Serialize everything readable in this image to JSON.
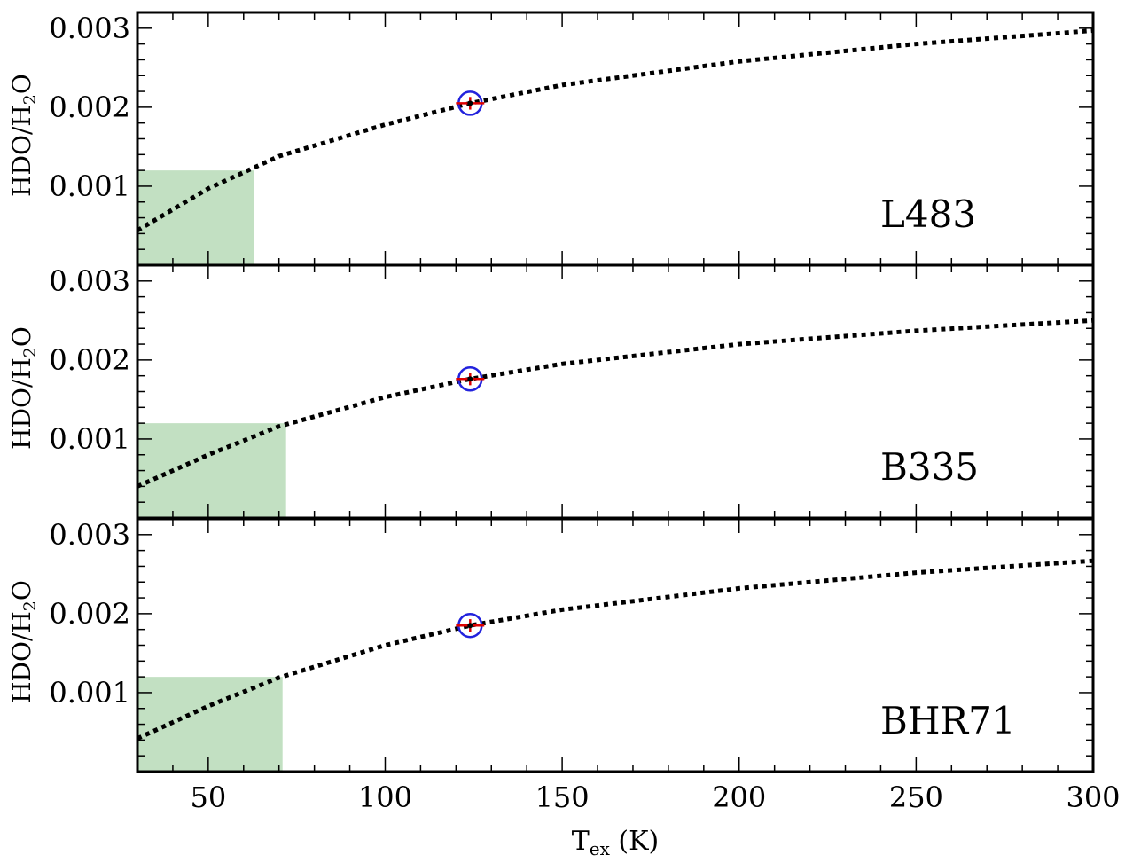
{
  "chart_data": {
    "type": "line",
    "shared_x": true,
    "xlabel_main": "T",
    "xlabel_sub": "ex",
    "xlabel_unit": " (K)",
    "ylabel_parts": [
      "HDO/H",
      "2",
      "O"
    ],
    "xlim": [
      30,
      300
    ],
    "ylim": [
      0,
      0.0032
    ],
    "xticks": [
      50,
      100,
      150,
      200,
      250,
      300
    ],
    "xtick_labels": [
      "50",
      "100",
      "150",
      "200",
      "250",
      "300"
    ],
    "yticks": [
      0.001,
      0.002,
      0.003
    ],
    "ytick_labels": [
      "0.001",
      "0.002",
      "0.003"
    ],
    "grid": false,
    "colors": {
      "curve": "#000000",
      "shade": "#c2e0c2",
      "marker_circle": "#2222dd",
      "errorbar": "#dd0000"
    },
    "panels": [
      {
        "label": "L483",
        "shade_xmax": 63,
        "shade_ymax": 0.0012,
        "point": {
          "x": 124,
          "y": 0.00205,
          "xerr": 4,
          "yerr": 8e-05
        },
        "curve": [
          {
            "x": 30,
            "y": 0.00044
          },
          {
            "x": 50,
            "y": 0.00097
          },
          {
            "x": 70,
            "y": 0.00138
          },
          {
            "x": 100,
            "y": 0.00178
          },
          {
            "x": 124,
            "y": 0.00205
          },
          {
            "x": 150,
            "y": 0.00228
          },
          {
            "x": 200,
            "y": 0.00258
          },
          {
            "x": 250,
            "y": 0.0028
          },
          {
            "x": 300,
            "y": 0.00297
          }
        ]
      },
      {
        "label": "B335",
        "shade_xmax": 72,
        "shade_ymax": 0.0012,
        "point": {
          "x": 124,
          "y": 0.00176,
          "xerr": 4,
          "yerr": 8e-05
        },
        "curve": [
          {
            "x": 30,
            "y": 0.0004
          },
          {
            "x": 50,
            "y": 0.0008
          },
          {
            "x": 70,
            "y": 0.00116
          },
          {
            "x": 100,
            "y": 0.00153
          },
          {
            "x": 124,
            "y": 0.00176
          },
          {
            "x": 150,
            "y": 0.00195
          },
          {
            "x": 200,
            "y": 0.0022
          },
          {
            "x": 250,
            "y": 0.00237
          },
          {
            "x": 300,
            "y": 0.0025
          }
        ]
      },
      {
        "label": "BHR71",
        "shade_xmax": 71,
        "shade_ymax": 0.0012,
        "point": {
          "x": 124,
          "y": 0.00185,
          "xerr": 4,
          "yerr": 8e-05
        },
        "curve": [
          {
            "x": 30,
            "y": 0.00042
          },
          {
            "x": 50,
            "y": 0.00083
          },
          {
            "x": 70,
            "y": 0.00119
          },
          {
            "x": 100,
            "y": 0.0016
          },
          {
            "x": 124,
            "y": 0.00185
          },
          {
            "x": 150,
            "y": 0.00205
          },
          {
            "x": 200,
            "y": 0.00232
          },
          {
            "x": 250,
            "y": 0.00252
          },
          {
            "x": 300,
            "y": 0.00267
          }
        ]
      }
    ]
  }
}
